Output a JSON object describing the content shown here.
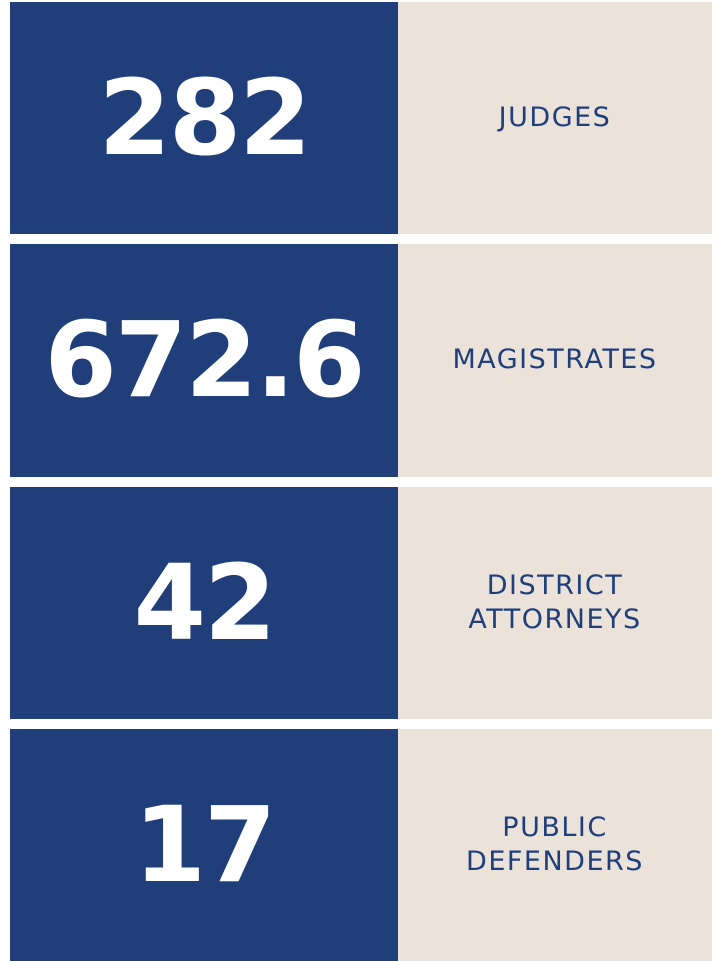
{
  "rows": [
    {
      "number": "282",
      "label": [
        "JUDGES"
      ]
    },
    {
      "number": "672.6",
      "label": [
        "MAGISTRATES"
      ]
    },
    {
      "number": "42",
      "label": [
        "DISTRICT",
        "ATTORNEYS"
      ]
    },
    {
      "number": "17",
      "label": [
        "PUBLIC",
        "DEFENDERS"
      ]
    }
  ]
}
